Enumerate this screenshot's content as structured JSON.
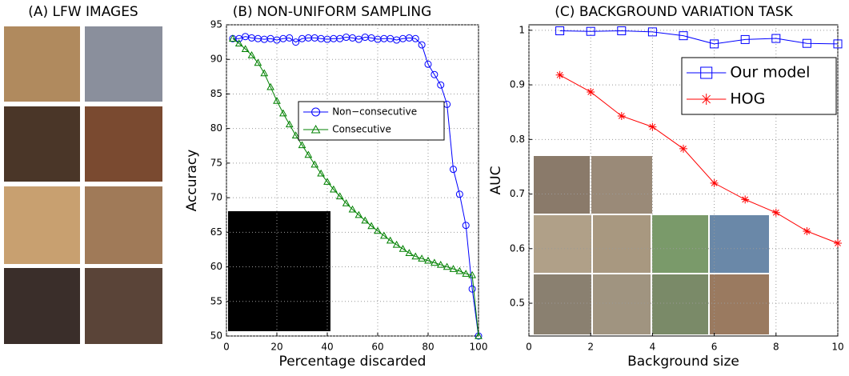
{
  "panel_a": {
    "title": "(A) LFW IMAGES"
  },
  "chart_data": [
    {
      "type": "line",
      "title": "(B) NON-UNIFORM SAMPLING",
      "x_label": "Percentage discarded",
      "y_label": "Accuracy",
      "x": [
        2.5,
        5,
        7.5,
        10,
        12.5,
        15,
        17.5,
        20,
        22.5,
        25,
        27.5,
        30,
        32.5,
        35,
        37.5,
        40,
        42.5,
        45,
        47.5,
        50,
        52.5,
        55,
        57.5,
        60,
        62.5,
        65,
        67.5,
        70,
        72.5,
        75,
        77.5,
        80,
        82.5,
        85,
        87.5,
        90,
        92.5,
        95,
        97.5,
        100
      ],
      "series": [
        {
          "name": "Non−consecutive",
          "color": "#0000ff",
          "marker": "circle",
          "values": [
            93,
            93,
            93.3,
            93.1,
            93,
            92.9,
            93,
            92.8,
            93,
            93.1,
            92.5,
            93,
            93.1,
            93.1,
            93,
            92.9,
            93,
            93,
            93.2,
            93.1,
            92.9,
            93.2,
            93.1,
            92.9,
            93,
            93,
            92.8,
            93,
            93.1,
            93,
            92.1,
            89.3,
            87.8,
            86.3,
            83.5,
            74.1,
            70.5,
            66,
            56.8,
            50
          ]
        },
        {
          "name": "Consecutive",
          "color": "#008000",
          "marker": "triangle",
          "values": [
            93,
            92.3,
            91.5,
            90.6,
            89.5,
            88,
            86,
            84,
            82.2,
            80.6,
            79,
            77.6,
            76.2,
            74.8,
            73.5,
            72.3,
            71.2,
            70.2,
            69.2,
            68.3,
            67.5,
            66.7,
            65.9,
            65.2,
            64.5,
            63.8,
            63.2,
            62.6,
            62,
            61.5,
            61.2,
            60.9,
            60.6,
            60.3,
            60,
            59.7,
            59.4,
            59,
            58.8,
            50
          ]
        }
      ],
      "xlim": [
        0,
        100
      ],
      "xticks": [
        0,
        20,
        40,
        60,
        80,
        100
      ],
      "ylim": [
        50,
        95
      ],
      "yticks": [
        50,
        55,
        60,
        65,
        70,
        75,
        80,
        85,
        90,
        95
      ],
      "grid": true,
      "legend_position": "upper center"
    },
    {
      "type": "line",
      "title": "(C) BACKGROUND VARIATION TASK",
      "x_label": "Background size",
      "y_label": "AUC",
      "x": [
        1,
        2,
        3,
        4,
        5,
        6,
        7,
        8,
        9,
        10
      ],
      "series": [
        {
          "name": "Our model",
          "color": "#0000ff",
          "marker": "square",
          "values": [
            0.999,
            0.998,
            0.999,
            0.997,
            0.99,
            0.975,
            0.983,
            0.985,
            0.976,
            0.975
          ]
        },
        {
          "name": "HOG",
          "color": "#ff0000",
          "marker": "asterisk",
          "values": [
            0.918,
            0.887,
            0.843,
            0.823,
            0.783,
            0.72,
            0.69,
            0.666,
            0.632,
            0.61
          ]
        }
      ],
      "xlim": [
        0,
        10
      ],
      "xticks": [
        0,
        2,
        4,
        6,
        8,
        10
      ],
      "ylim": [
        0.44,
        1.01
      ],
      "yticks": [
        0.5,
        0.6,
        0.7,
        0.8,
        0.9,
        1
      ],
      "grid": true,
      "legend_position": "upper right"
    }
  ]
}
